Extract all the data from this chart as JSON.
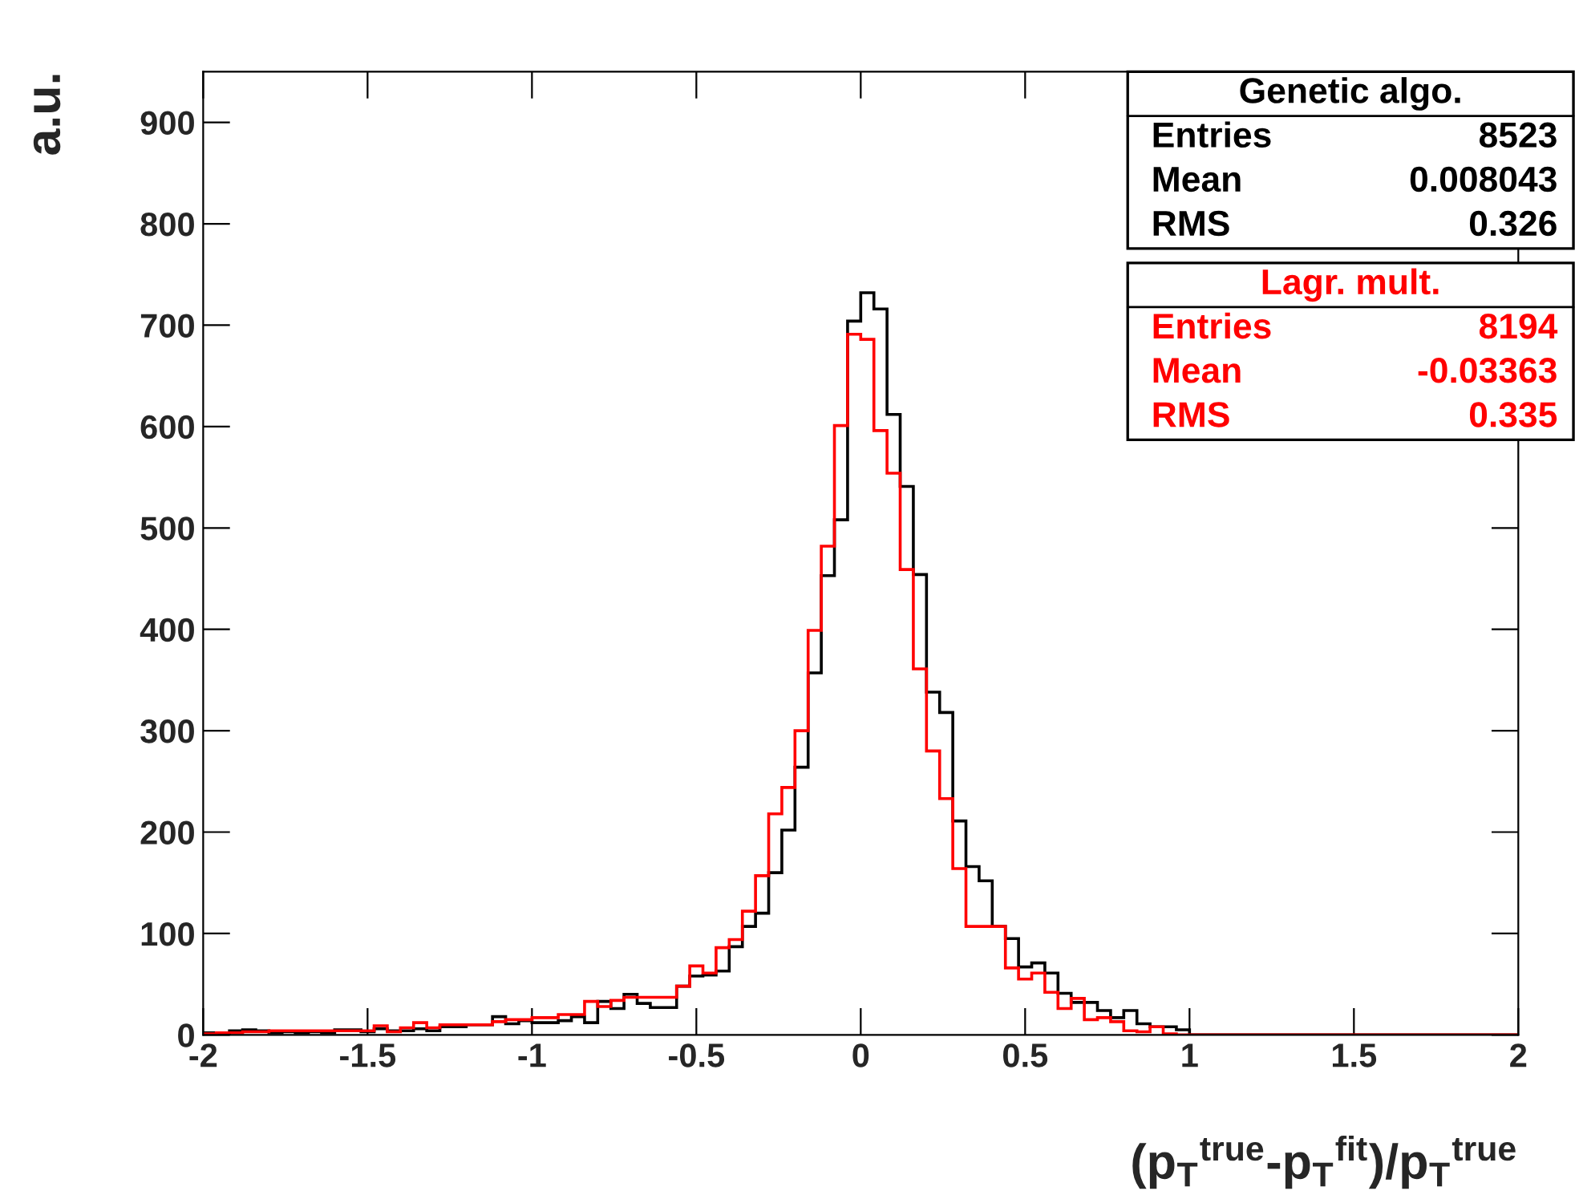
{
  "chart_data": {
    "type": "histogram",
    "xlabel": "(p$_{T}$$^{true}$-p$_{T}$$^{fit}$)/p$_{T}$$^{true}$",
    "ylabel": "a.u.",
    "bins": [
      -2.0,
      -1.96,
      -1.92,
      -1.88,
      -1.84,
      -1.8,
      -1.76,
      -1.72,
      -1.68,
      -1.64,
      -1.6,
      -1.56,
      -1.52,
      -1.48,
      -1.44,
      -1.4,
      -1.36,
      -1.32,
      -1.28,
      -1.24,
      -1.2,
      -1.16,
      -1.12,
      -1.08,
      -1.04,
      -1.0,
      -0.96,
      -0.92,
      -0.88,
      -0.84,
      -0.8,
      -0.76,
      -0.72,
      -0.68,
      -0.64,
      -0.6,
      -0.56,
      -0.52,
      -0.48,
      -0.44,
      -0.4,
      -0.36,
      -0.32,
      -0.28,
      -0.24,
      -0.2,
      -0.16,
      -0.12,
      -0.08,
      -0.04,
      0.0,
      0.04,
      0.08,
      0.12,
      0.16,
      0.2,
      0.24,
      0.28,
      0.32,
      0.36,
      0.4,
      0.44,
      0.48,
      0.52,
      0.56,
      0.6,
      0.64,
      0.68,
      0.72,
      0.76,
      0.8,
      0.84,
      0.88,
      0.92,
      0.96,
      1.0,
      1.04,
      1.08,
      1.12,
      1.16,
      1.2,
      1.24,
      1.28,
      1.32,
      1.36,
      1.4,
      1.44,
      1.48,
      1.52,
      1.56,
      1.6,
      1.64,
      1.68,
      1.72,
      1.76,
      1.8,
      1.84,
      1.88,
      1.92,
      1.96,
      2.0
    ],
    "series": [
      {
        "name": "Genetic algo.",
        "color": "#000000",
        "values": [
          2,
          1,
          4,
          5,
          4,
          2,
          3,
          2,
          3,
          2,
          5,
          5,
          3,
          6,
          4,
          4,
          6,
          4,
          8,
          8,
          10,
          10,
          18,
          11,
          14,
          12,
          12,
          14,
          18,
          12,
          33,
          26,
          40,
          31,
          27,
          27,
          48,
          58,
          59,
          63,
          87,
          107,
          120,
          160,
          202,
          264,
          357,
          453,
          508,
          704,
          732,
          716,
          612,
          541,
          454,
          338,
          318,
          211,
          166,
          152,
          107,
          95,
          67,
          71,
          61,
          41,
          32,
          32,
          24,
          17,
          24,
          11,
          8,
          8,
          5,
          0,
          0,
          0,
          0,
          0,
          0,
          0,
          0,
          0,
          0,
          0,
          0,
          0,
          0,
          0,
          0,
          0,
          0,
          0,
          0,
          0,
          0,
          0,
          0,
          0
        ]
      },
      {
        "name": "Lagr. mult.",
        "color": "#ff0000",
        "values": [
          1,
          2,
          2,
          3,
          3,
          4,
          4,
          4,
          4,
          4,
          4,
          4,
          4,
          9,
          3,
          7,
          12,
          7,
          10,
          10,
          10,
          10,
          13,
          15,
          15,
          17,
          17,
          20,
          20,
          33,
          28,
          34,
          37,
          37,
          37,
          37,
          48,
          68,
          61,
          86,
          94,
          122,
          157,
          218,
          244,
          300,
          399,
          482,
          601,
          691,
          686,
          596,
          554,
          459,
          361,
          280,
          233,
          164,
          107,
          107,
          107,
          66,
          55,
          61,
          42,
          26,
          36,
          15,
          17,
          13,
          4,
          3,
          8,
          1,
          0,
          0,
          0,
          0,
          0,
          0,
          0,
          0,
          0,
          0,
          0,
          0,
          0,
          0,
          0,
          0,
          0,
          0,
          0,
          0,
          0,
          0,
          0,
          0,
          0,
          0
        ]
      }
    ],
    "xlim": [
      -2,
      2
    ],
    "xticks": [
      -2,
      -1.5,
      -1,
      -0.5,
      0,
      0.5,
      1,
      1.5,
      2
    ],
    "ylim": [
      0,
      950
    ],
    "yticks": [
      0,
      100,
      200,
      300,
      400,
      500,
      600,
      700,
      800,
      900
    ],
    "annotations": [
      "Entries",
      "8523",
      "Mean",
      "0.008043",
      "RMS",
      "0.326",
      "Entries",
      "8194",
      "Mean",
      "-0.03363",
      "RMS",
      "0.335"
    ]
  }
}
